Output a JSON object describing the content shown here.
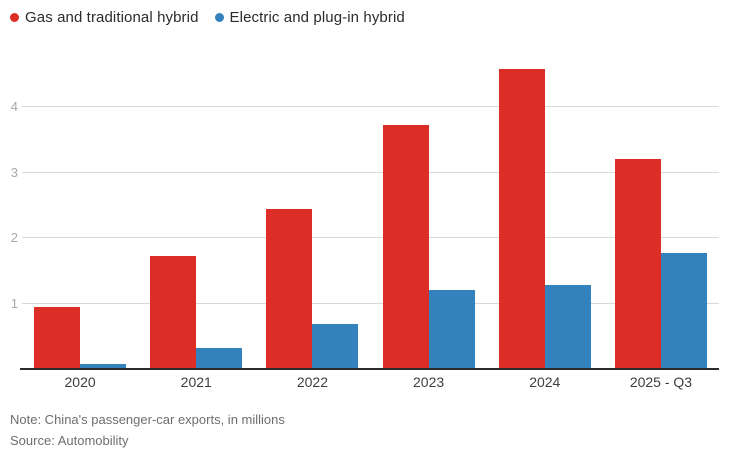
{
  "colors": {
    "gas": "#dc2d26",
    "electric": "#3381bd",
    "gridline": "#d8d8d8",
    "axis_line": "#2b2b2b",
    "y_tick_text": "#a9a9a9",
    "x_tick_text": "#3d3d3d",
    "footer_text": "#6e6e6e"
  },
  "legend": {
    "items": [
      {
        "key": "gas",
        "label": "Gas and traditional hybrid",
        "color": "#dc2d26"
      },
      {
        "key": "electric",
        "label": "Electric and plug-in hybrid",
        "color": "#3381bd"
      }
    ]
  },
  "chart_data": {
    "type": "bar",
    "title": "",
    "xlabel": "",
    "ylabel": "",
    "categories": [
      "2020",
      "2021",
      "2022",
      "2023",
      "2024",
      "2025 - Q3"
    ],
    "series": [
      {
        "name": "Gas and traditional hybrid",
        "key": "gas",
        "color": "#dc2d26",
        "values": [
          0.94,
          1.73,
          2.44,
          3.72,
          4.58,
          3.21
        ]
      },
      {
        "name": "Electric and plug-in hybrid",
        "key": "electric",
        "color": "#3381bd",
        "values": [
          0.07,
          0.32,
          0.68,
          1.21,
          1.29,
          1.77
        ]
      }
    ],
    "yticks": [
      1,
      2,
      3,
      4
    ],
    "ylim": [
      0,
      4.75
    ],
    "grid": true,
    "legend_position": "top-left"
  },
  "footer": {
    "note": "Note: China's passenger-car exports, in millions",
    "source": "Source: Automobility"
  }
}
